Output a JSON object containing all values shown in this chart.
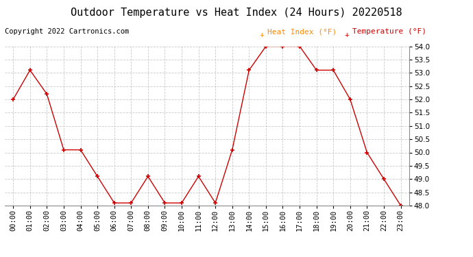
{
  "title": "Outdoor Temperature vs Heat Index (24 Hours) 20220518",
  "copyright": "Copyright 2022 Cartronics.com",
  "legend_heat_index": "Heat Index (°F)",
  "legend_temperature": "Temperature (°F)",
  "x_labels": [
    "00:00",
    "01:00",
    "02:00",
    "03:00",
    "04:00",
    "05:00",
    "06:00",
    "07:00",
    "08:00",
    "09:00",
    "10:00",
    "11:00",
    "12:00",
    "13:00",
    "14:00",
    "15:00",
    "16:00",
    "17:00",
    "18:00",
    "19:00",
    "20:00",
    "21:00",
    "22:00",
    "23:00"
  ],
  "temperature": [
    52.0,
    53.1,
    52.2,
    50.1,
    50.1,
    49.1,
    48.1,
    48.1,
    49.1,
    48.1,
    48.1,
    49.1,
    48.1,
    50.1,
    53.1,
    54.0,
    54.0,
    54.0,
    53.1,
    53.1,
    52.0,
    50.0,
    49.0,
    48.0
  ],
  "y_min": 48.0,
  "y_max": 54.0,
  "y_tick_interval": 0.5,
  "line_color": "#cc0000",
  "marker": "+",
  "background_color": "#ffffff",
  "grid_color": "#bbbbbb",
  "title_fontsize": 11,
  "copyright_fontsize": 7.5,
  "legend_fontsize": 8,
  "axis_fontsize": 7.5,
  "legend_heat_index_color": "#ff8800",
  "legend_temperature_color": "#cc0000"
}
